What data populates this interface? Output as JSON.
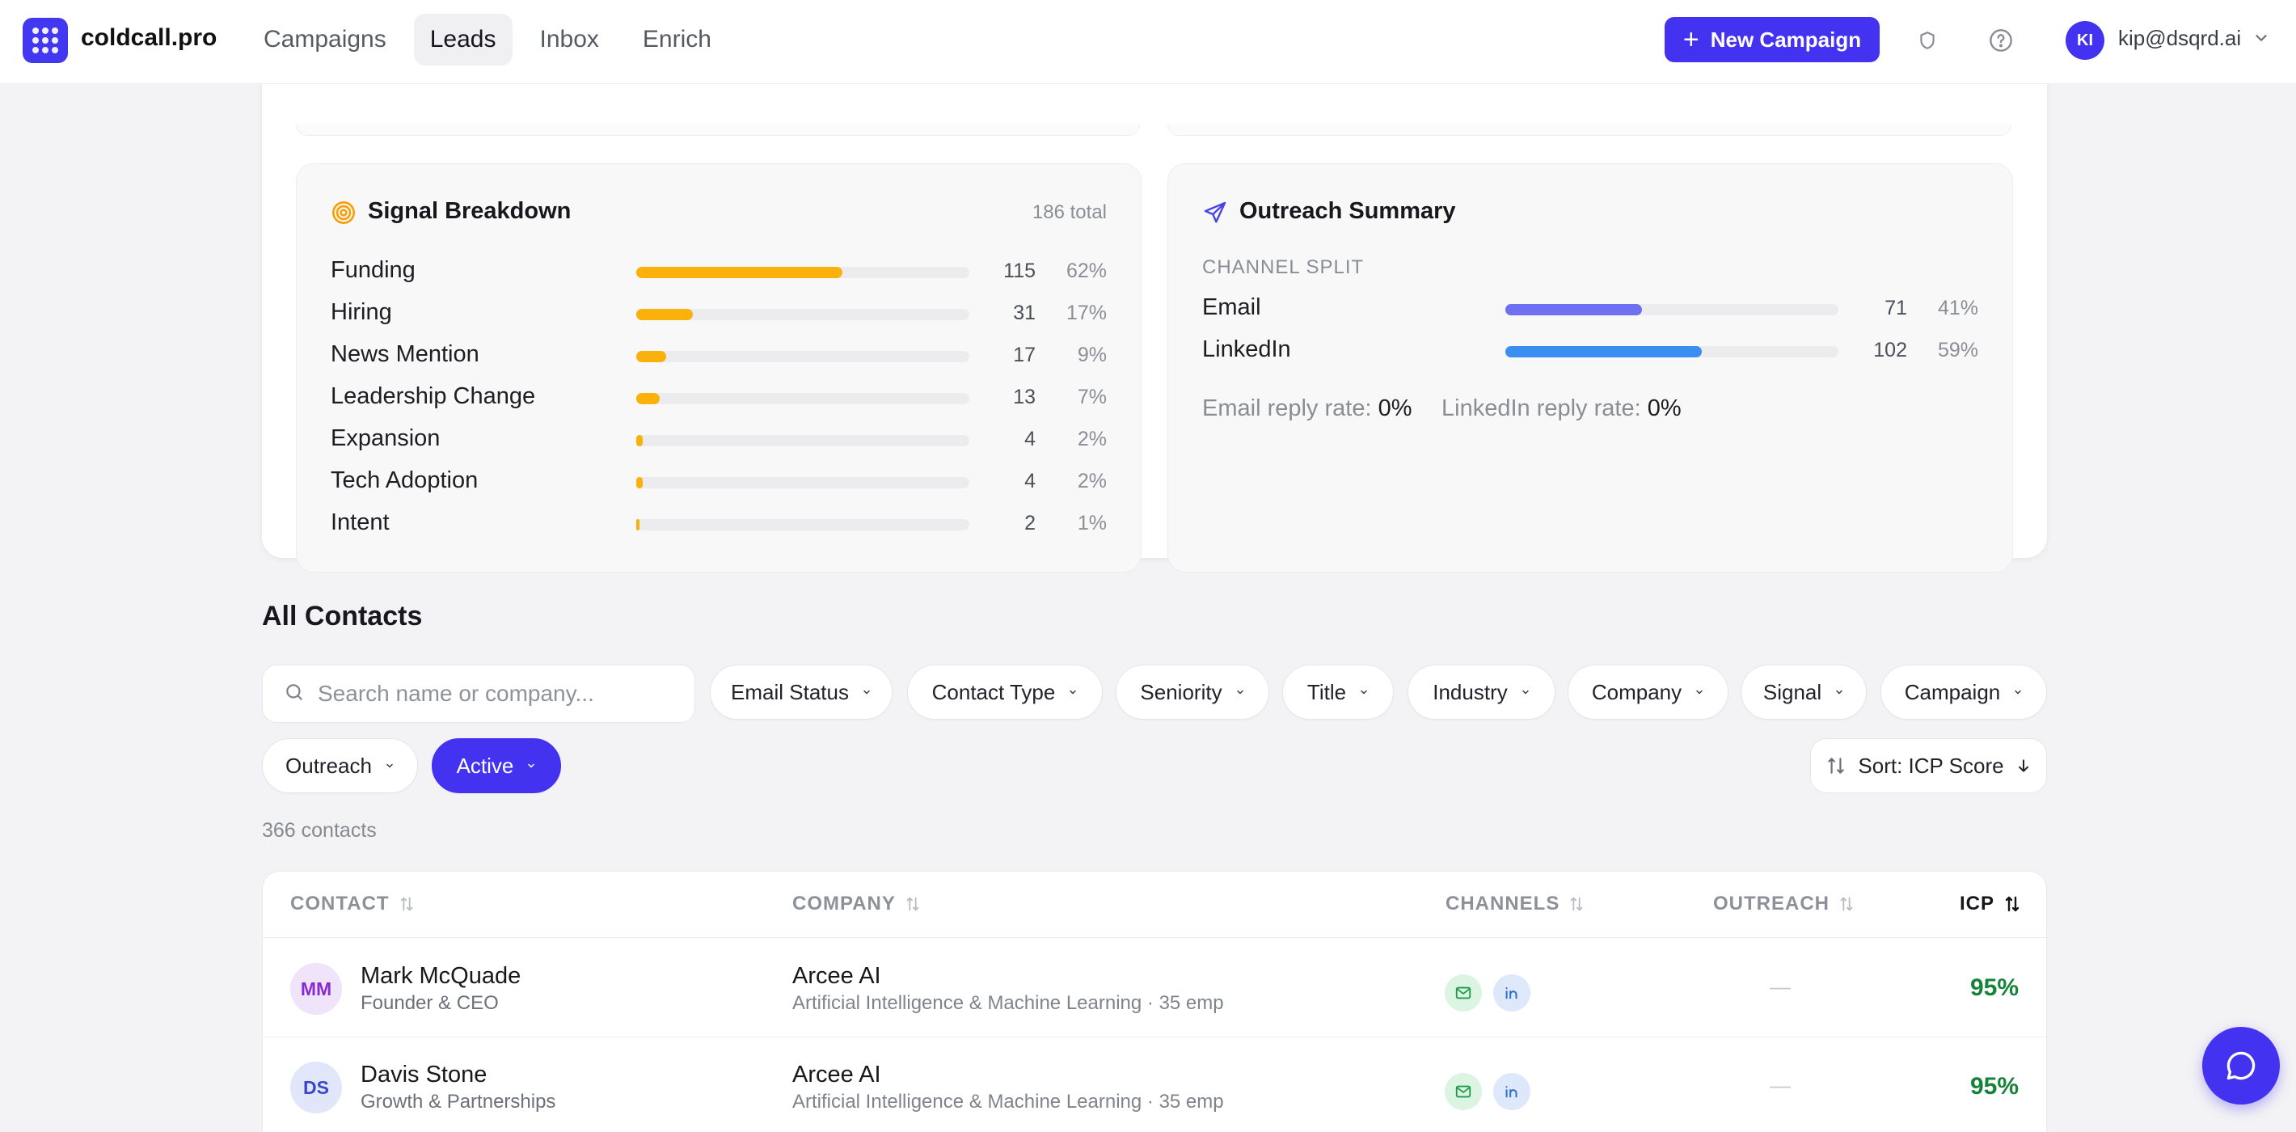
{
  "brand": {
    "name": "coldcall.pro"
  },
  "nav": {
    "tabs": [
      {
        "label": "Campaigns",
        "active": false
      },
      {
        "label": "Leads",
        "active": true
      },
      {
        "label": "Inbox",
        "active": false
      },
      {
        "label": "Enrich",
        "active": false
      }
    ],
    "new_campaign_label": "New Campaign",
    "user": {
      "initials": "KI",
      "email": "kip@dsqrd.ai"
    }
  },
  "signal_breakdown": {
    "title": "Signal Breakdown",
    "total": "186 total",
    "accent": "#fbb10b",
    "rows": [
      {
        "label": "Funding",
        "count": "115",
        "pct": "62%",
        "fraction": 0.62
      },
      {
        "label": "Hiring",
        "count": "31",
        "pct": "17%",
        "fraction": 0.17
      },
      {
        "label": "News Mention",
        "count": "17",
        "pct": "9%",
        "fraction": 0.09
      },
      {
        "label": "Leadership Change",
        "count": "13",
        "pct": "7%",
        "fraction": 0.07
      },
      {
        "label": "Expansion",
        "count": "4",
        "pct": "2%",
        "fraction": 0.02
      },
      {
        "label": "Tech Adoption",
        "count": "4",
        "pct": "2%",
        "fraction": 0.02
      },
      {
        "label": "Intent",
        "count": "2",
        "pct": "1%",
        "fraction": 0.01
      }
    ]
  },
  "outreach_summary": {
    "title": "Outreach Summary",
    "channel_split_label": "CHANNEL SPLIT",
    "channels": [
      {
        "label": "Email",
        "count": "71",
        "pct": "41%",
        "fraction": 0.41,
        "color": "#6f6ff2"
      },
      {
        "label": "LinkedIn",
        "count": "102",
        "pct": "59%",
        "fraction": 0.59,
        "color": "#3b8ff0"
      }
    ],
    "email_reply_label": "Email reply rate:",
    "email_reply_value": "0%",
    "linkedin_reply_label": "LinkedIn reply rate:",
    "linkedin_reply_value": "0%"
  },
  "contacts": {
    "title": "All Contacts",
    "search_placeholder": "Search name or company...",
    "filters": [
      "Email Status",
      "Contact Type",
      "Seniority",
      "Title",
      "Industry",
      "Company",
      "Signal",
      "Campaign",
      "Outreach"
    ],
    "active_filter": "Active",
    "sort_label": "Sort: ICP Score",
    "count_text": "366 contacts",
    "columns": [
      "CONTACT",
      "COMPANY",
      "CHANNELS",
      "OUTREACH",
      "ICP"
    ],
    "rows": [
      {
        "initials": "MM",
        "name": "Mark McQuade",
        "title": "Founder & CEO",
        "company": "Arcee AI",
        "company_sub": "Artificial Intelligence & Machine Learning · 35 emp",
        "outreach": "—",
        "icp": "95%",
        "avatar_bg": "#f0e4fa",
        "avatar_fg": "#8a2ad6"
      },
      {
        "initials": "DS",
        "name": "Davis Stone",
        "title": "Growth & Partnerships",
        "company": "Arcee AI",
        "company_sub": "Artificial Intelligence & Machine Learning · 35 emp",
        "outreach": "—",
        "icp": "95%",
        "avatar_bg": "#e2e6fb",
        "avatar_fg": "#3a48c8"
      }
    ]
  },
  "colors": {
    "primary": "#4332ef",
    "icp_green": "#16823a"
  }
}
